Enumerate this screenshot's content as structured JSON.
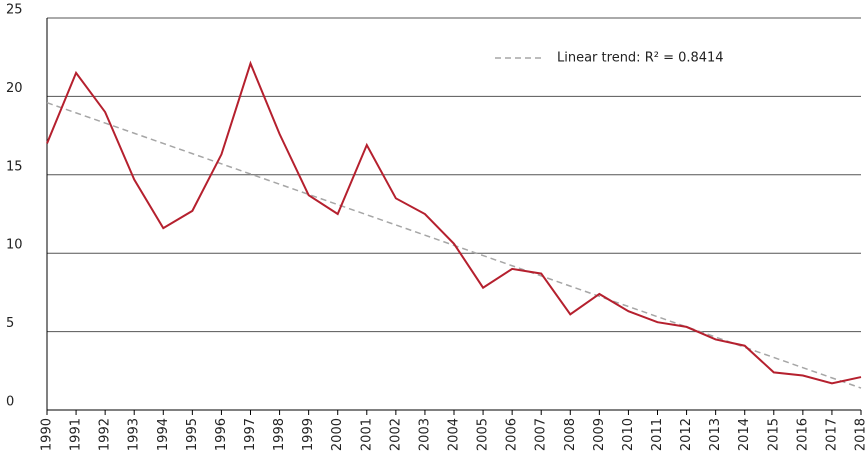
{
  "chart_data": {
    "type": "line",
    "x": [
      1990,
      1991,
      1992,
      1993,
      1994,
      1995,
      1996,
      1997,
      1998,
      1999,
      2000,
      2001,
      2002,
      2003,
      2004,
      2005,
      2006,
      2007,
      2008,
      2009,
      2010,
      2011,
      2012,
      2013,
      2014,
      2015,
      2016,
      2017,
      2018
    ],
    "series": [
      {
        "color": "#b5202e",
        "values": [
          17.0,
          21.5,
          19.0,
          14.7,
          11.6,
          12.7,
          16.3,
          22.1,
          17.6,
          13.7,
          12.5,
          16.9,
          13.5,
          12.5,
          10.6,
          7.8,
          9.0,
          8.7,
          6.1,
          7.4,
          6.3,
          5.6,
          5.3,
          4.5,
          4.1,
          2.4,
          2.2,
          1.7,
          2.1
        ]
      },
      {
        "name": "Linear trend: R² = 0.8414",
        "color": "#a6a6a6",
        "dashed": true,
        "values": [
          19.6,
          18.95,
          18.3,
          17.65,
          17.0,
          16.35,
          15.7,
          15.05,
          14.4,
          13.75,
          13.1,
          12.45,
          11.8,
          11.15,
          10.5,
          9.85,
          9.2,
          8.55,
          7.9,
          7.25,
          6.6,
          5.95,
          5.3,
          4.65,
          4.0,
          3.35,
          2.7,
          2.05,
          1.4
        ]
      }
    ],
    "xlim": [
      1990,
      2018
    ],
    "xticks": [
      1990,
      1991,
      1992,
      1993,
      1994,
      1995,
      1996,
      1997,
      1998,
      1999,
      2000,
      2001,
      2002,
      2003,
      2004,
      2005,
      2006,
      2007,
      2008,
      2009,
      2010,
      2011,
      2012,
      2013,
      2014,
      2015,
      2016,
      2017,
      2018
    ],
    "ylim": [
      0,
      25
    ],
    "yticks": [
      0,
      5,
      10,
      15,
      20,
      25
    ],
    "grid": true,
    "legend": "top-right"
  }
}
